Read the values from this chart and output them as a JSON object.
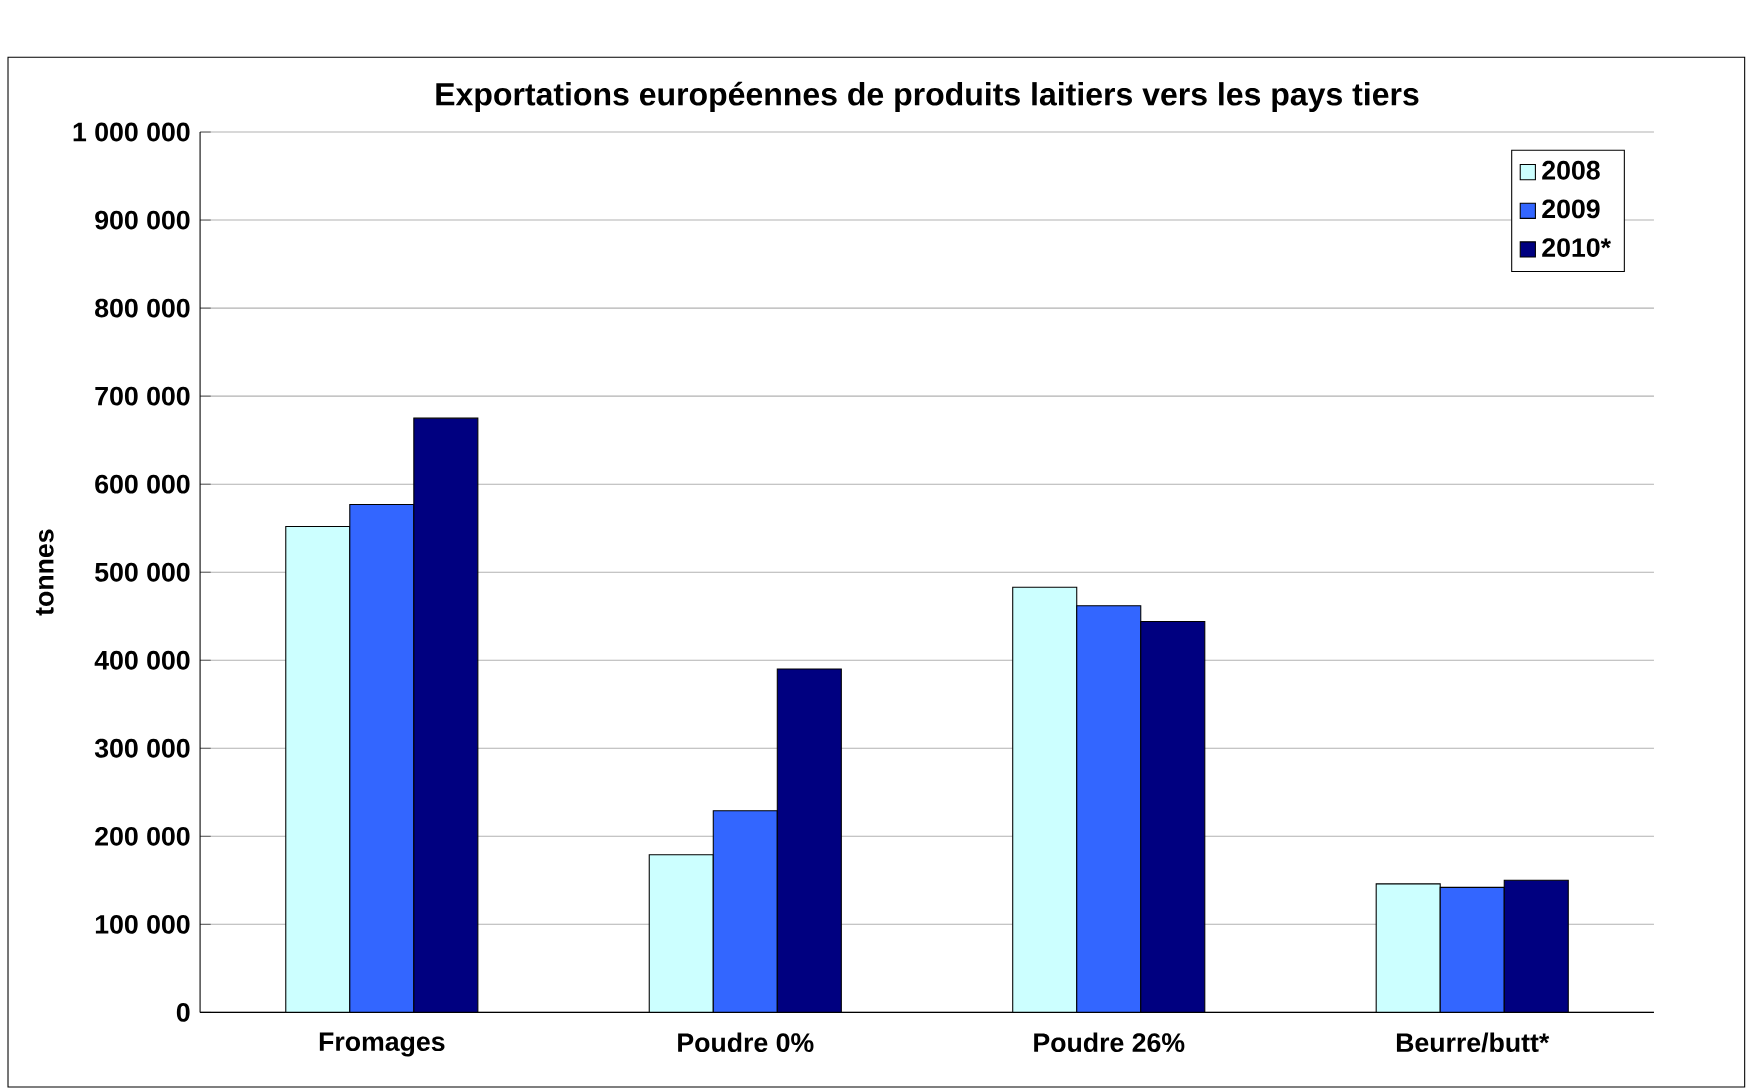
{
  "chart_data": {
    "type": "bar",
    "title": "Exportations européennes de produits laitiers vers les pays tiers",
    "ylabel": "tonnes",
    "categories": [
      "Fromages",
      "Poudre 0%",
      "Poudre 26%",
      "Beurre/butt*"
    ],
    "series": [
      {
        "name": "2008",
        "color": "#ccffff",
        "values": [
          552000,
          179000,
          483000,
          146000
        ]
      },
      {
        "name": "2009",
        "color": "#3366ff",
        "values": [
          577000,
          229000,
          462000,
          142000
        ]
      },
      {
        "name": "2010*",
        "color": "#000080",
        "values": [
          675000,
          390000,
          444000,
          150000
        ]
      }
    ],
    "ylim": [
      0,
      1000000
    ],
    "yticks": [
      {
        "value": 0,
        "label": "0"
      },
      {
        "value": 100000,
        "label": "100 000"
      },
      {
        "value": 200000,
        "label": "200 000"
      },
      {
        "value": 300000,
        "label": "300 000"
      },
      {
        "value": 400000,
        "label": "400 000"
      },
      {
        "value": 500000,
        "label": "500 000"
      },
      {
        "value": 600000,
        "label": "600 000"
      },
      {
        "value": 700000,
        "label": "700 000"
      },
      {
        "value": 800000,
        "label": "800 000"
      },
      {
        "value": 900000,
        "label": "900 000"
      },
      {
        "value": 1000000,
        "label": "1 000 000"
      }
    ],
    "grid": "y",
    "legend": "top right"
  }
}
